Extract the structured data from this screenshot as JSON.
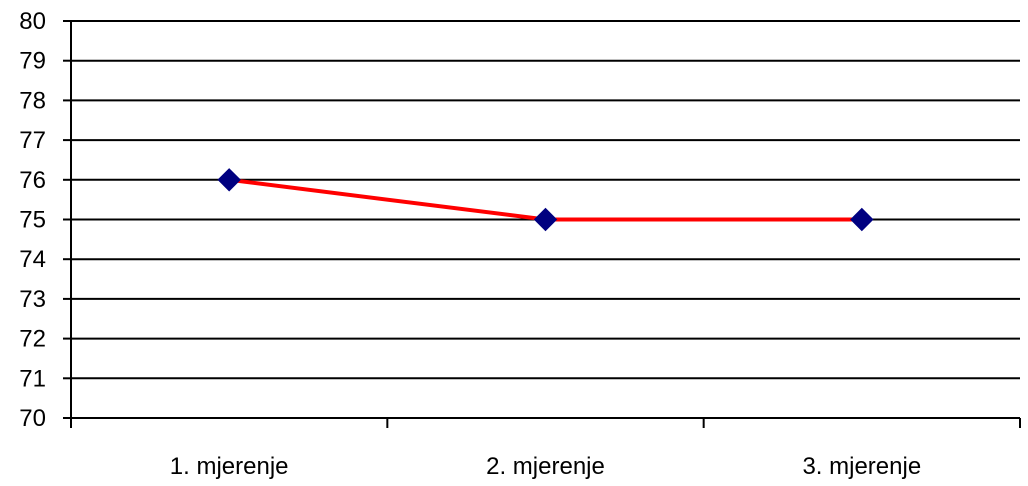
{
  "chart_data": {
    "type": "line",
    "title": "",
    "xlabel": "",
    "ylabel": "",
    "categories": [
      "1. mjerenje",
      "2. mjerenje",
      "3. mjerenje"
    ],
    "series": [
      {
        "values": [
          76,
          75,
          75
        ],
        "line_color": "#ff0000",
        "marker": "diamond",
        "marker_color": "#000080"
      }
    ],
    "ylim": [
      70,
      80
    ],
    "yticks": [
      70,
      71,
      72,
      73,
      74,
      75,
      76,
      77,
      78,
      79,
      80
    ],
    "grid": true,
    "legend": "none"
  }
}
